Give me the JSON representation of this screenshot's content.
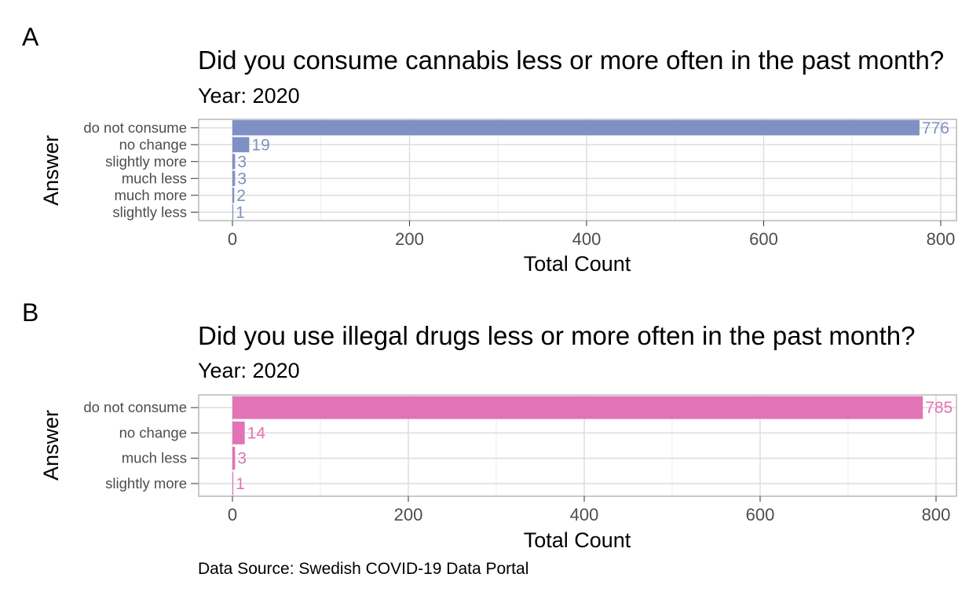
{
  "caption": "Data Source: Swedish COVID-19 Data Portal",
  "chart_data": [
    {
      "type": "bar",
      "orientation": "horizontal",
      "panel_tag": "A",
      "title": "Did you consume cannabis less or more often in the past month?",
      "subtitle": "Year: 2020",
      "xlabel": "Total Count",
      "ylabel": "Answer",
      "xlim": [
        0,
        800
      ],
      "x_ticks": [
        "0",
        "200",
        "400",
        "600",
        "800"
      ],
      "grid": true,
      "color": "#7f90c4",
      "categories": [
        "do not consume",
        "no change",
        "slightly more",
        "much less",
        "much more",
        "slightly less"
      ],
      "values": [
        776,
        19,
        3,
        3,
        2,
        1
      ],
      "data_labels": [
        "776",
        "19",
        "3",
        "3",
        "2",
        "1"
      ]
    },
    {
      "type": "bar",
      "orientation": "horizontal",
      "panel_tag": "B",
      "title": "Did you use illegal drugs less or more often in the past month?",
      "subtitle": "Year: 2020",
      "xlabel": "Total Count",
      "ylabel": "Answer",
      "xlim": [
        0,
        800
      ],
      "x_ticks": [
        "0",
        "200",
        "400",
        "600",
        "800"
      ],
      "grid": true,
      "color": "#e273b6",
      "categories": [
        "do not consume",
        "no change",
        "much less",
        "slightly more"
      ],
      "values": [
        785,
        14,
        3,
        1
      ],
      "data_labels": [
        "785",
        "14",
        "3",
        "1"
      ]
    }
  ]
}
